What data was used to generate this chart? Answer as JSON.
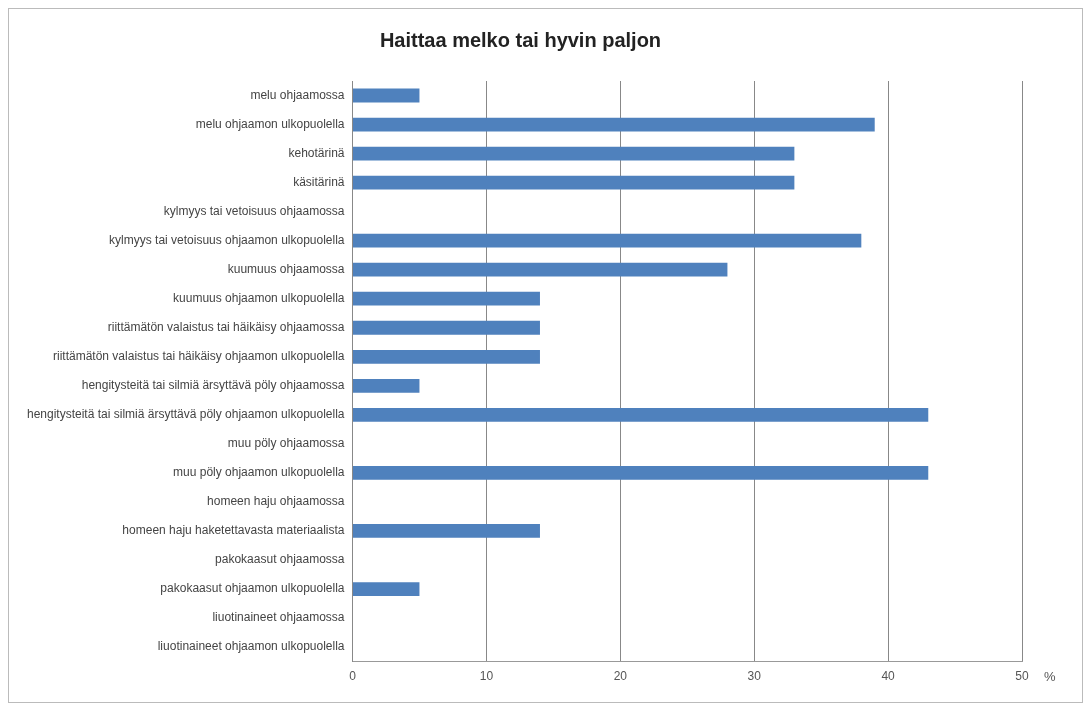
{
  "chart_data": {
    "type": "bar",
    "orientation": "horizontal",
    "title": "Haittaa melko tai hyvin paljon",
    "xlabel": "%",
    "categories": [
      "melu ohjaamossa",
      "melu ohjaamon ulkopuolella",
      "kehotärinä",
      "käsitärinä",
      "kylmyys tai vetoisuus ohjaamossa",
      "kylmyys tai vetoisuus ohjaamon ulkopuolella",
      "kuumuus ohjaamossa",
      "kuumuus ohjaamon ulkopuolella",
      "riittämätön valaistus tai häikäisy ohjaamossa",
      "riittämätön valaistus tai häikäisy ohjaamon ulkopuolella",
      "hengitysteitä tai silmiä ärsyttävä pöly ohjaamossa",
      "hengitysteitä tai silmiä ärsyttävä pöly ohjaamon ulkopuolella",
      "muu pöly ohjaamossa",
      "muu pöly ohjaamon ulkopuolella",
      "homeen haju ohjaamossa",
      "homeen haju haketettavasta materiaalista",
      "pakokaasut ohjaamossa",
      "pakokaasut ohjaamon ulkopuolella",
      "liuotinaineet ohjaamossa",
      "liuotinaineet ohjaamon ulkopuolella"
    ],
    "values": [
      5,
      39,
      33,
      33,
      0,
      38,
      28,
      14,
      14,
      14,
      5,
      43,
      0,
      43,
      0,
      14,
      0,
      5,
      0,
      0
    ],
    "color": "#4f81bd",
    "xlim": [
      0,
      50
    ],
    "xticks": [
      0,
      10,
      20,
      30,
      40,
      50
    ],
    "grid": "x"
  }
}
